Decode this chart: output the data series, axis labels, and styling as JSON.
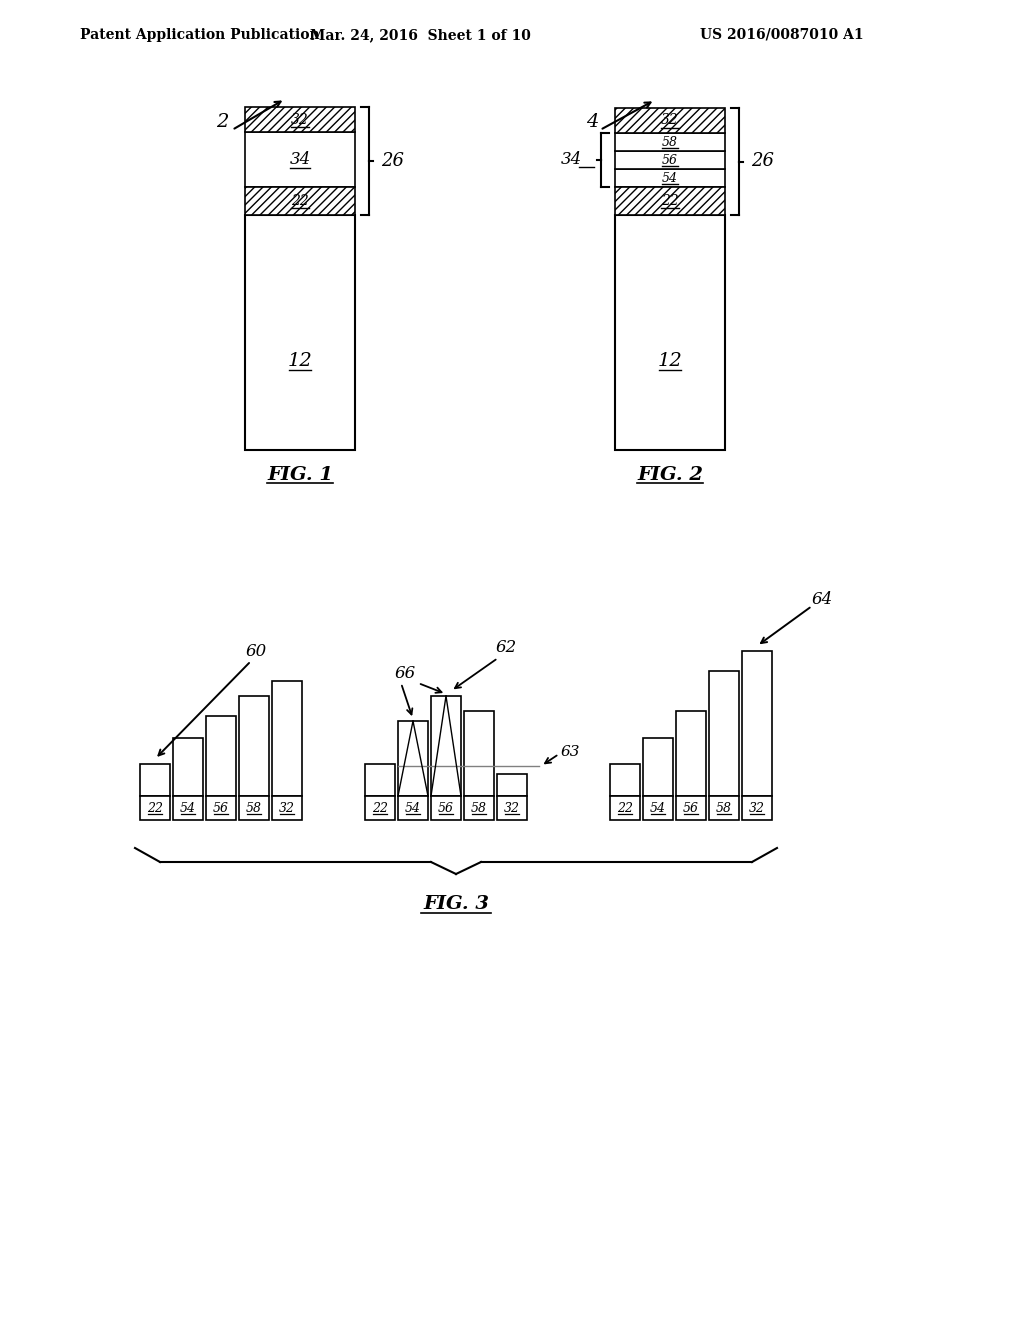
{
  "bg_color": "#ffffff",
  "header_left": "Patent Application Publication",
  "header_mid": "Mar. 24, 2016  Sheet 1 of 10",
  "header_right": "US 2016/0087010 A1",
  "fig1_label": "2",
  "fig2_label": "4",
  "fig1_caption": "FIG. 1",
  "fig2_caption": "FIG. 2",
  "fig3_caption": "FIG. 3",
  "label_12": "12",
  "label_22": "22",
  "label_26": "26",
  "label_32": "32",
  "label_34": "34",
  "label_54": "54",
  "label_56": "56",
  "label_58": "58",
  "label_60": "60",
  "label_62": "62",
  "label_63": "63",
  "label_64": "64",
  "label_66": "66"
}
